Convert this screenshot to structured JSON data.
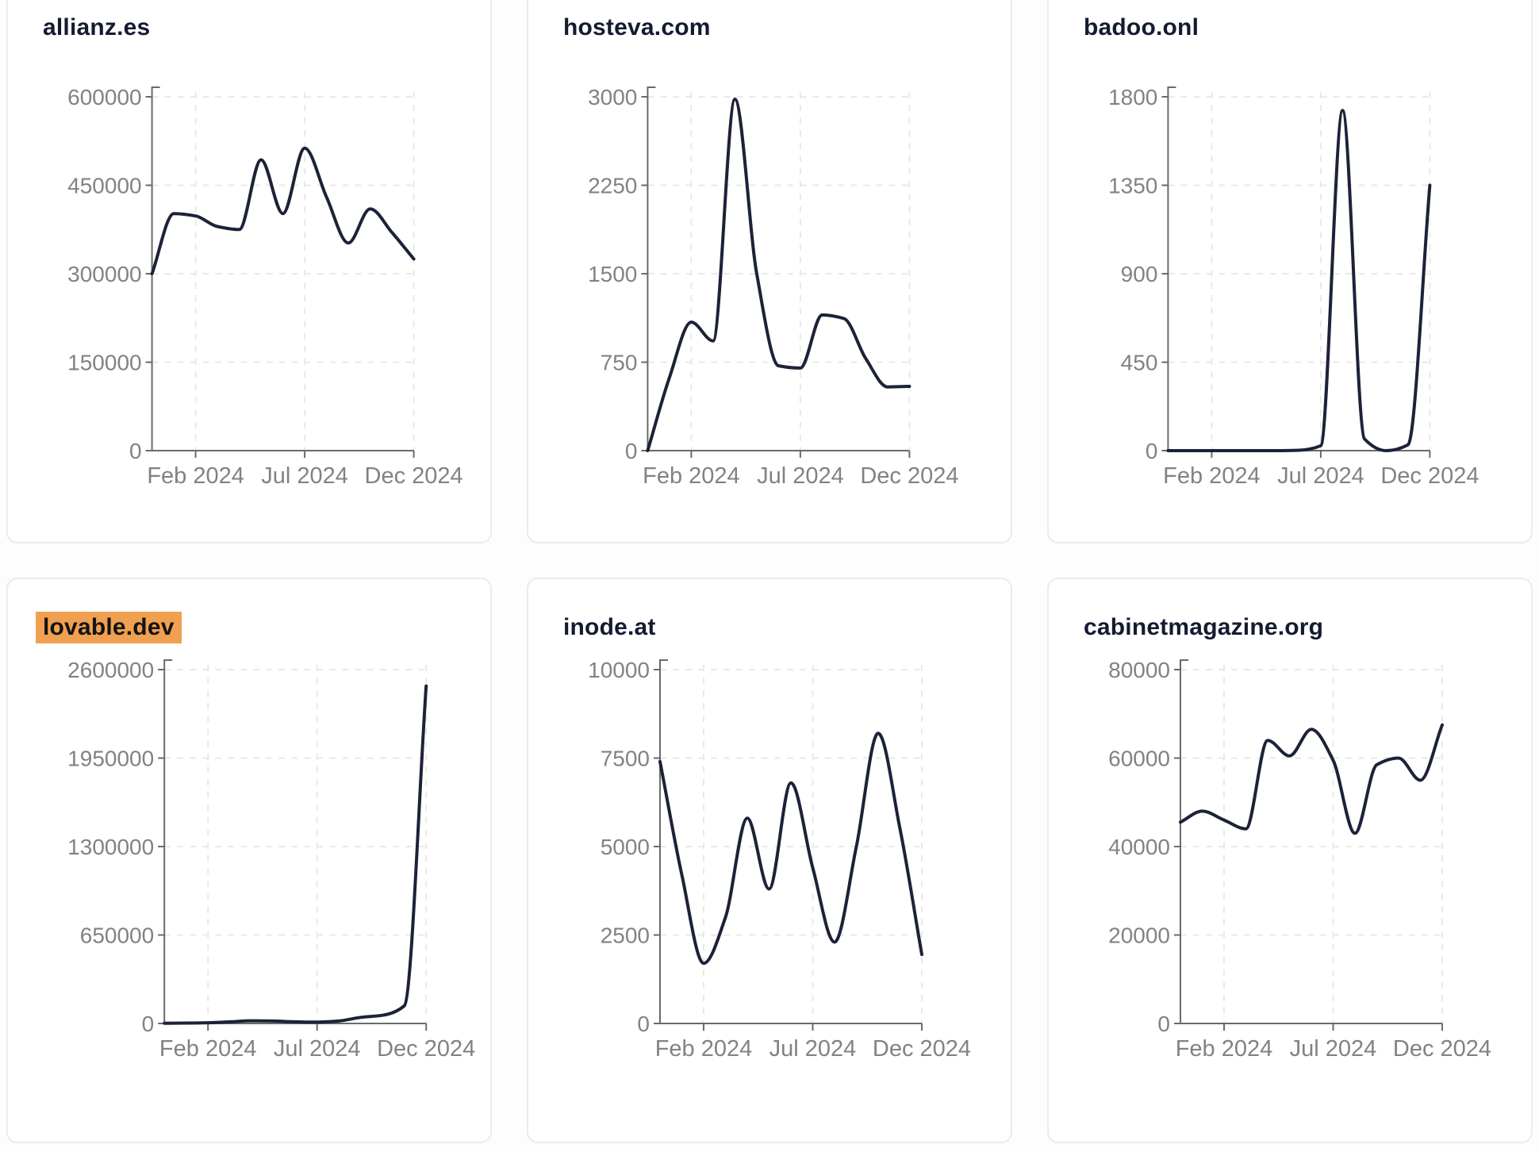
{
  "page": {
    "background": "#fdfdfe",
    "card_background": "#ffffff",
    "card_border_color": "#e9ebef"
  },
  "colors": {
    "line": "#1c2238",
    "title_text": "#141b30",
    "axis": "#6a6a6a",
    "tick_label": "#828282",
    "gridline": "#e9e9e9",
    "highlight_background": "#f0a050",
    "highlight_text": "#141414"
  },
  "x_axis": {
    "tick_labels": [
      "Feb 2024",
      "Jul 2024",
      "Dec 2024"
    ],
    "tick_indices": [
      2,
      7,
      12
    ]
  },
  "chart_data": [
    {
      "type": "line",
      "title": "allianz.es",
      "highlighted": false,
      "grid": true,
      "x": [
        "Dec 2023",
        "Jan 2024",
        "Feb 2024",
        "Mar 2024",
        "Apr 2024",
        "May 2024",
        "Jun 2024",
        "Jul 2024",
        "Aug 2024",
        "Sep 2024",
        "Oct 2024",
        "Nov 2024",
        "Dec 2024"
      ],
      "xlabel": "",
      "ylabel": "",
      "ylim": [
        0,
        600000
      ],
      "y_ticks": [
        0,
        150000,
        300000,
        450000,
        600000
      ],
      "values": [
        300000,
        402000,
        398000,
        380000,
        375000,
        493000,
        402000,
        513000,
        430000,
        352000,
        410000,
        370000,
        325000
      ]
    },
    {
      "type": "line",
      "title": "hosteva.com",
      "highlighted": false,
      "grid": true,
      "x": [
        "Dec 2023",
        "Jan 2024",
        "Feb 2024",
        "Mar 2024",
        "Apr 2024",
        "May 2024",
        "Jun 2024",
        "Jul 2024",
        "Aug 2024",
        "Sep 2024",
        "Oct 2024",
        "Nov 2024",
        "Dec 2024"
      ],
      "xlabel": "",
      "ylabel": "",
      "ylim": [
        0,
        3000
      ],
      "y_ticks": [
        0,
        750,
        1500,
        2250,
        3000
      ],
      "values": [
        0,
        620,
        1090,
        930,
        2980,
        1500,
        720,
        700,
        1150,
        1120,
        780,
        540,
        545
      ]
    },
    {
      "type": "line",
      "title": "badoo.onl",
      "highlighted": false,
      "grid": true,
      "x": [
        "Dec 2023",
        "Jan 2024",
        "Feb 2024",
        "Mar 2024",
        "Apr 2024",
        "May 2024",
        "Jun 2024",
        "Jul 2024",
        "Aug 2024",
        "Sep 2024",
        "Oct 2024",
        "Nov 2024",
        "Dec 2024"
      ],
      "xlabel": "",
      "ylabel": "",
      "ylim": [
        0,
        1800
      ],
      "y_ticks": [
        0,
        450,
        900,
        1350,
        1800
      ],
      "values": [
        0,
        0,
        0,
        0,
        0,
        0,
        2,
        25,
        1730,
        60,
        0,
        30,
        1350
      ]
    },
    {
      "type": "line",
      "title": "lovable.dev",
      "highlighted": true,
      "grid": true,
      "x": [
        "Dec 2023",
        "Jan 2024",
        "Feb 2024",
        "Mar 2024",
        "Apr 2024",
        "May 2024",
        "Jun 2024",
        "Jul 2024",
        "Aug 2024",
        "Sep 2024",
        "Oct 2024",
        "Nov 2024",
        "Dec 2024"
      ],
      "xlabel": "",
      "ylabel": "",
      "ylim": [
        0,
        2600000
      ],
      "y_ticks": [
        0,
        650000,
        1300000,
        1950000,
        2600000
      ],
      "values": [
        2000,
        3000,
        5000,
        12000,
        20000,
        18000,
        12000,
        10000,
        18000,
        45000,
        60000,
        130000,
        2480000
      ]
    },
    {
      "type": "line",
      "title": "inode.at",
      "highlighted": false,
      "grid": true,
      "x": [
        "Dec 2023",
        "Jan 2024",
        "Feb 2024",
        "Mar 2024",
        "Apr 2024",
        "May 2024",
        "Jun 2024",
        "Jul 2024",
        "Aug 2024",
        "Sep 2024",
        "Oct 2024",
        "Nov 2024",
        "Dec 2024"
      ],
      "xlabel": "",
      "ylabel": "",
      "ylim": [
        0,
        10000
      ],
      "y_ticks": [
        0,
        2500,
        5000,
        7500,
        10000
      ],
      "values": [
        7400,
        4200,
        1700,
        3000,
        5800,
        3800,
        6800,
        4400,
        2300,
        5000,
        8200,
        5500,
        1950
      ]
    },
    {
      "type": "line",
      "title": "cabinetmagazine.org",
      "highlighted": false,
      "grid": true,
      "x": [
        "Dec 2023",
        "Jan 2024",
        "Feb 2024",
        "Mar 2024",
        "Apr 2024",
        "May 2024",
        "Jun 2024",
        "Jul 2024",
        "Aug 2024",
        "Sep 2024",
        "Oct 2024",
        "Nov 2024",
        "Dec 2024"
      ],
      "xlabel": "",
      "ylabel": "",
      "ylim": [
        0,
        80000
      ],
      "y_ticks": [
        0,
        20000,
        40000,
        60000,
        80000
      ],
      "values": [
        45500,
        48000,
        46000,
        44000,
        64000,
        60500,
        66500,
        59500,
        43000,
        58500,
        60000,
        55000,
        67500
      ]
    }
  ]
}
